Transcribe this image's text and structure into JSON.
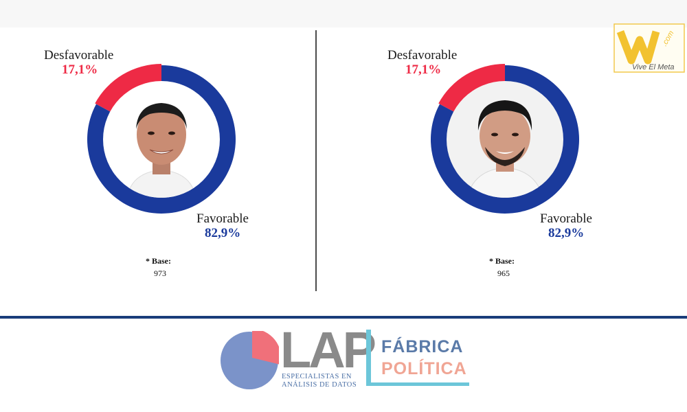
{
  "colors": {
    "favorable": "#1a3a9c",
    "desfavorable": "#ee2a45",
    "divider": "#4a4a4a",
    "rule": "#1a3c7a"
  },
  "chart_data": [
    {
      "type": "pie",
      "categories": [
        "Desfavorable",
        "Favorable"
      ],
      "values": [
        17.1,
        82.9
      ],
      "value_labels": [
        "17,1%",
        "82,9%"
      ],
      "base_label": "* Base:",
      "base_value": "973"
    },
    {
      "type": "pie",
      "categories": [
        "Desfavorable",
        "Favorable"
      ],
      "values": [
        17.1,
        82.9
      ],
      "value_labels": [
        "17,1%",
        "82,9%"
      ],
      "base_label": "* Base:",
      "base_value": "965"
    }
  ],
  "footer": {
    "lap_name": "LAP",
    "lap_tagline_1": "ESPECIALISTAS EN",
    "lap_tagline_2": "ANÁLISIS DE DATOS",
    "fp_line_1": "FÁBRICA",
    "fp_line_2": "POLÍTICA"
  },
  "watermark": {
    "brand": "VM",
    "domain": ".com",
    "tagline": "Vive El Meta"
  }
}
